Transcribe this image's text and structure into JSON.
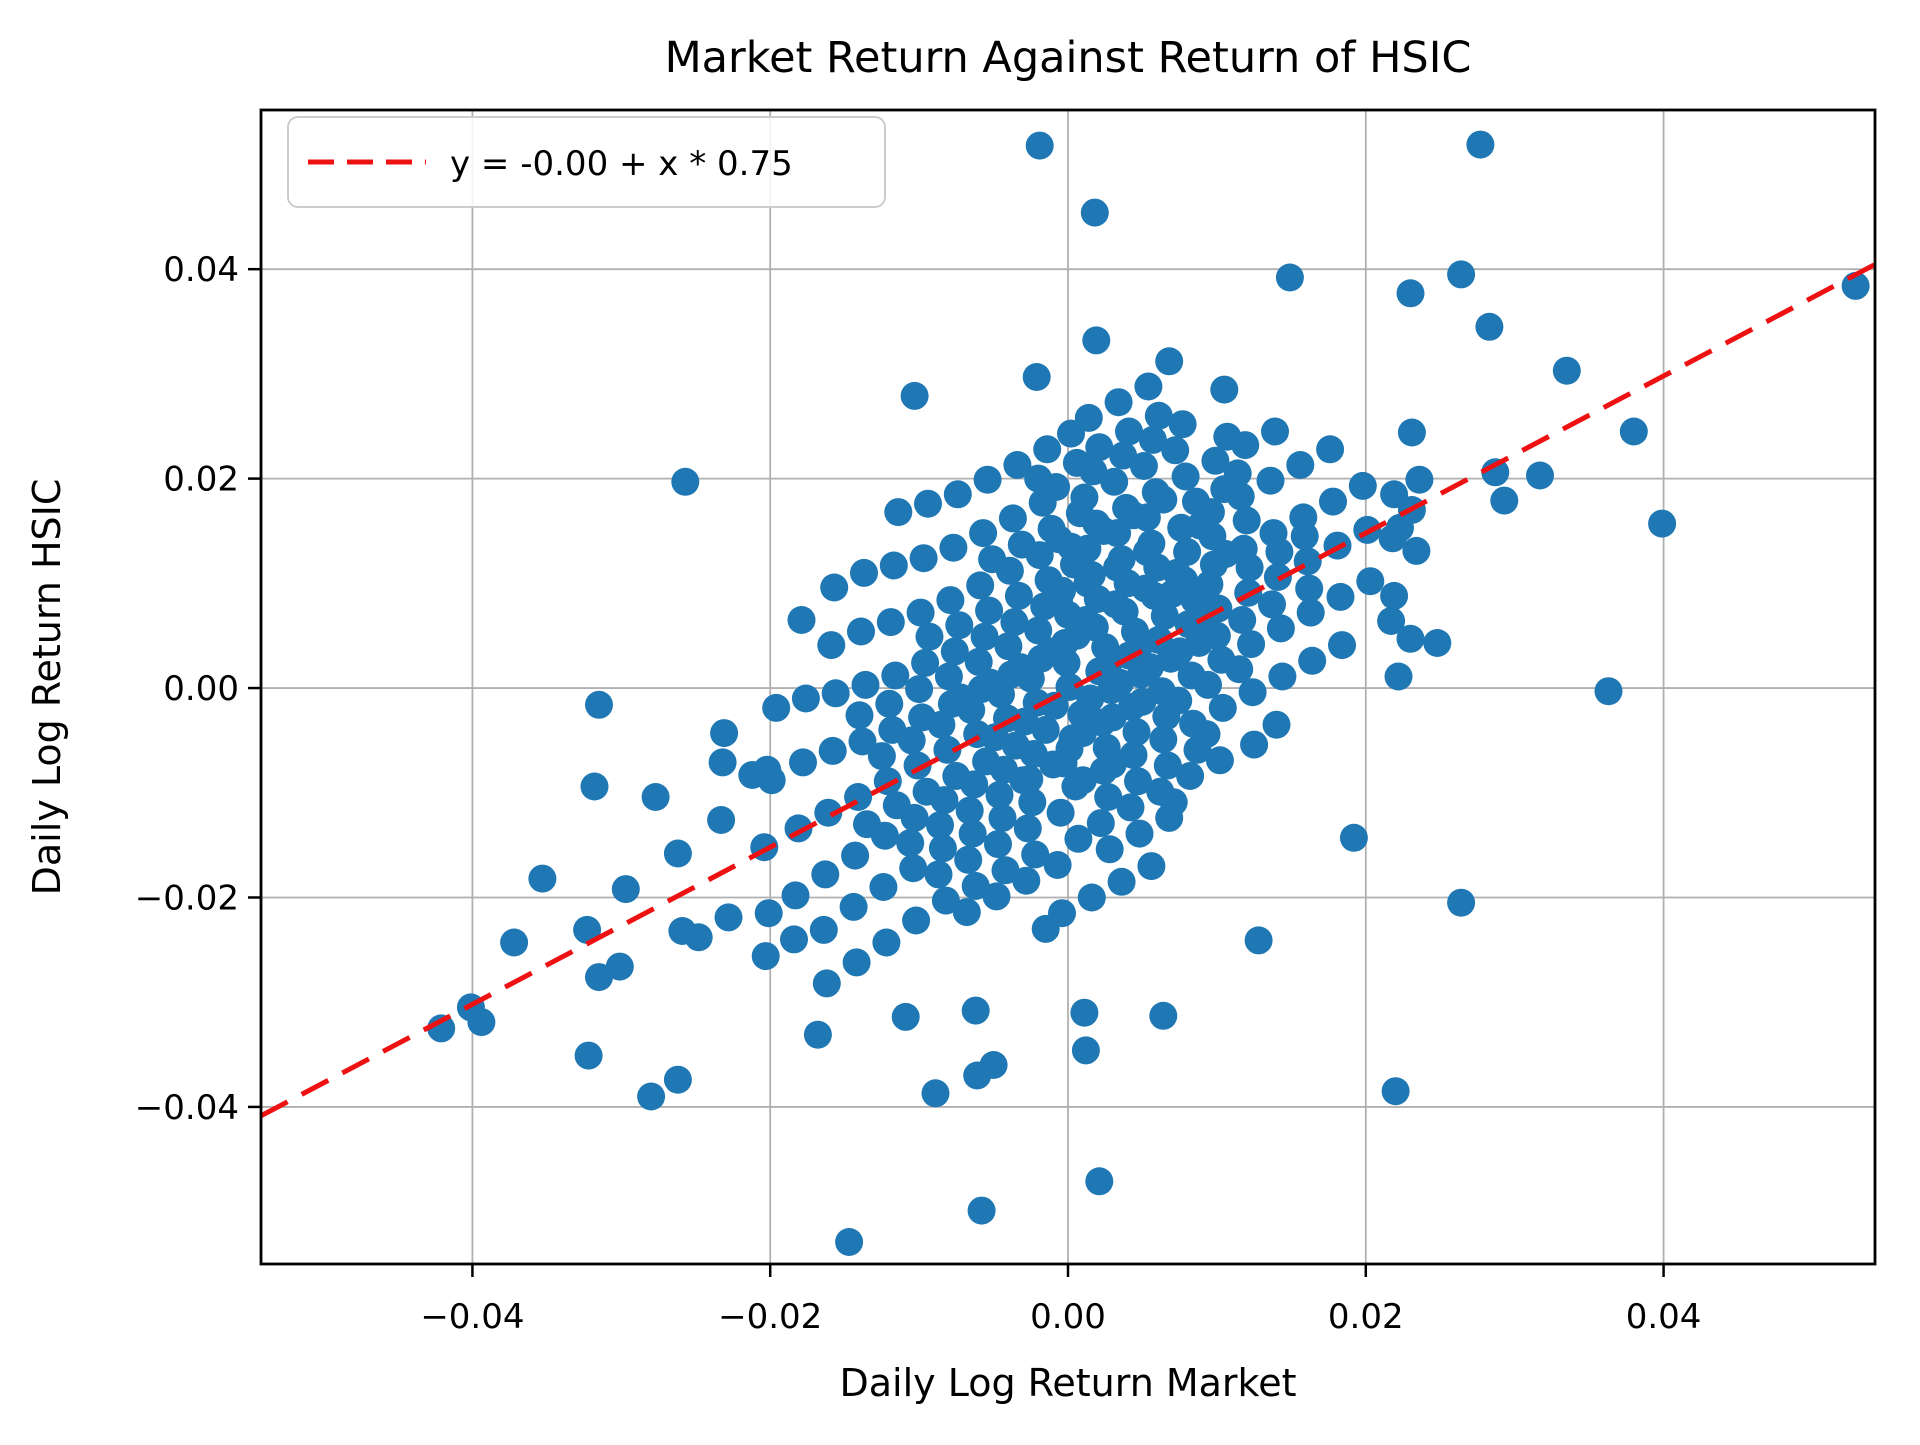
{
  "figure": {
    "title": "Market Return Against Return of HSIC",
    "xlabel": "Daily Log Return Market",
    "ylabel": "Daily Log Return HSIC",
    "legend_label": "y = -0.00 + x * 0.75"
  },
  "colors": {
    "scatter": "#1f77b4",
    "fit_line": "#ee1111",
    "grid": "#b0b0b0",
    "spine": "#000000",
    "tick": "#000000",
    "legend_border": "#cccccc",
    "legend_fill": "#ffffff"
  },
  "chart_data": {
    "type": "scatter",
    "title": "Market Return Against Return of HSIC",
    "xlabel": "Daily Log Return Market",
    "ylabel": "Daily Log Return HSIC",
    "xlim": [
      -0.0542,
      0.0542
    ],
    "ylim": [
      -0.055,
      0.0552
    ],
    "grid": true,
    "legend_position": "upper left",
    "x_tick_values": [
      -0.04,
      -0.02,
      0.0,
      0.02,
      0.04
    ],
    "x_tick_labels": [
      "−0.04",
      "−0.02",
      "0.00",
      "0.02",
      "0.04"
    ],
    "y_tick_values": [
      -0.04,
      -0.02,
      0.0,
      0.02,
      0.04
    ],
    "y_tick_labels": [
      "−0.04",
      "−0.02",
      "0.00",
      "0.02",
      "0.04"
    ],
    "fit_line": {
      "label": "y = -0.00 + x * 0.75",
      "intercept": -0.0002,
      "slope": 0.75,
      "style": "dashed"
    },
    "marker_radius_px": 14,
    "points": [
      [
        -0.0019,
        0.0518
      ],
      [
        0.0277,
        0.0519
      ],
      [
        0.0018,
        0.0454
      ],
      [
        0.0529,
        0.0384
      ],
      [
        0.0283,
        0.0345
      ],
      [
        0.0264,
        0.0395
      ],
      [
        0.023,
        0.0377
      ],
      [
        0.0335,
        0.0303
      ],
      [
        0.0149,
        0.0392
      ],
      [
        0.0105,
        0.0285
      ],
      [
        0.0068,
        0.0312
      ],
      [
        -0.0021,
        0.0297
      ],
      [
        0.0019,
        0.0332
      ],
      [
        0.0231,
        0.0244
      ],
      [
        0.038,
        0.0245
      ],
      [
        0.0399,
        0.0157
      ],
      [
        0.0363,
        -0.0003
      ],
      [
        -0.0103,
        0.0279
      ],
      [
        -0.0257,
        0.0197
      ],
      [
        -0.0147,
        -0.0529
      ],
      [
        -0.0058,
        -0.0499
      ],
      [
        0.0021,
        -0.0471
      ],
      [
        -0.0421,
        -0.0325
      ],
      [
        -0.0401,
        -0.0305
      ],
      [
        -0.0394,
        -0.0319
      ],
      [
        -0.0372,
        -0.0243
      ],
      [
        -0.0323,
        -0.0231
      ],
      [
        -0.0322,
        -0.0351
      ],
      [
        -0.0315,
        -0.0276
      ],
      [
        -0.028,
        -0.039
      ],
      [
        -0.0262,
        -0.0374
      ],
      [
        -0.0248,
        -0.0238
      ],
      [
        -0.0353,
        -0.0182
      ],
      [
        -0.0168,
        -0.0331
      ],
      [
        -0.0089,
        -0.0387
      ],
      [
        -0.0061,
        -0.037
      ],
      [
        -0.005,
        -0.036
      ],
      [
        -0.0109,
        -0.0314
      ],
      [
        -0.0062,
        -0.0308
      ],
      [
        0.0011,
        -0.031
      ],
      [
        0.0012,
        -0.0346
      ],
      [
        0.022,
        -0.0385
      ],
      [
        0.0064,
        -0.0313
      ],
      [
        0.0128,
        -0.0241
      ],
      [
        0.0264,
        -0.0205
      ],
      [
        0.0192,
        -0.0143
      ],
      [
        -0.0315,
        -0.0016
      ],
      [
        -0.0318,
        -0.0094
      ],
      [
        -0.0277,
        -0.0104
      ],
      [
        -0.0232,
        -0.0071
      ],
      [
        -0.0212,
        -0.0083
      ],
      [
        -0.0202,
        -0.0078
      ],
      [
        0.0236,
        0.0199
      ],
      [
        0.0287,
        0.0206
      ],
      [
        0.0317,
        0.0203
      ],
      [
        0.0293,
        0.0179
      ],
      [
        0.0231,
        0.017
      ],
      [
        0.0223,
        0.0153
      ],
      [
        0.0234,
        0.0131
      ],
      [
        0.0218,
        0.0143
      ],
      [
        0.0219,
        0.0185
      ],
      [
        0.0219,
        0.0088
      ],
      [
        0.0217,
        0.0064
      ],
      [
        0.023,
        0.0047
      ],
      [
        0.0248,
        0.0043
      ],
      [
        0.0222,
        0.0011
      ],
      [
        -0.0301,
        -0.0266
      ],
      [
        -0.0297,
        -0.0192
      ],
      [
        -0.0262,
        -0.0158
      ],
      [
        -0.0259,
        -0.0232
      ],
      [
        -0.0233,
        -0.0126
      ],
      [
        -0.0228,
        -0.0219
      ],
      [
        -0.0231,
        -0.0043
      ],
      [
        -0.0204,
        -0.0152
      ],
      [
        -0.0199,
        -0.0088
      ],
      [
        -0.0201,
        -0.0215
      ],
      [
        -0.0196,
        -0.0019
      ],
      [
        -0.0203,
        -0.0256
      ],
      [
        -0.0181,
        -0.0134
      ],
      [
        -0.0178,
        -0.0071
      ],
      [
        -0.0183,
        -0.0198
      ],
      [
        -0.0176,
        -0.001
      ],
      [
        -0.0184,
        -0.024
      ],
      [
        -0.0179,
        0.0065
      ],
      [
        -0.0161,
        -0.0119
      ],
      [
        -0.0158,
        -0.006
      ],
      [
        -0.0163,
        -0.0178
      ],
      [
        -0.0156,
        -0.0005
      ],
      [
        -0.0164,
        -0.0231
      ],
      [
        -0.0159,
        0.0041
      ],
      [
        -0.0162,
        -0.0282
      ],
      [
        -0.0157,
        0.0096
      ],
      [
        -0.0141,
        -0.0104
      ],
      [
        -0.0138,
        -0.0051
      ],
      [
        -0.0143,
        -0.016
      ],
      [
        -0.0136,
        0.0003
      ],
      [
        -0.0144,
        -0.0209
      ],
      [
        -0.0139,
        0.0054
      ],
      [
        -0.0142,
        -0.0262
      ],
      [
        -0.0137,
        0.011
      ],
      [
        -0.014,
        -0.0026
      ],
      [
        -0.0135,
        -0.013
      ],
      [
        -0.0121,
        -0.0089
      ],
      [
        -0.0118,
        -0.004
      ],
      [
        -0.0123,
        -0.0141
      ],
      [
        -0.0116,
        0.0012
      ],
      [
        -0.0124,
        -0.019
      ],
      [
        -0.0119,
        0.0063
      ],
      [
        -0.0122,
        -0.0243
      ],
      [
        -0.0117,
        0.0117
      ],
      [
        -0.012,
        -0.0015
      ],
      [
        -0.0115,
        -0.0112
      ],
      [
        -0.0125,
        -0.0065
      ],
      [
        -0.0114,
        0.0168
      ],
      [
        -0.0101,
        -0.0074
      ],
      [
        -0.0098,
        -0.0028
      ],
      [
        -0.0103,
        -0.0124
      ],
      [
        -0.0096,
        0.0024
      ],
      [
        -0.0104,
        -0.0172
      ],
      [
        -0.0099,
        0.0072
      ],
      [
        -0.0102,
        -0.0222
      ],
      [
        -0.0097,
        0.0124
      ],
      [
        -0.01,
        -0.0001
      ],
      [
        -0.0095,
        -0.0099
      ],
      [
        -0.0105,
        -0.005
      ],
      [
        -0.0094,
        0.0176
      ],
      [
        -0.0106,
        -0.0148
      ],
      [
        -0.0093,
        0.0049
      ],
      [
        -0.0081,
        -0.0059
      ],
      [
        -0.0078,
        -0.0015
      ],
      [
        -0.0083,
        -0.0107
      ],
      [
        -0.0076,
        0.0035
      ],
      [
        -0.0084,
        -0.0153
      ],
      [
        -0.0079,
        0.0084
      ],
      [
        -0.0082,
        -0.0203
      ],
      [
        -0.0077,
        0.0134
      ],
      [
        -0.008,
        0.0011
      ],
      [
        -0.0075,
        -0.0084
      ],
      [
        -0.0085,
        -0.0035
      ],
      [
        -0.0074,
        0.0185
      ],
      [
        -0.0086,
        -0.0131
      ],
      [
        -0.0073,
        0.006
      ],
      [
        -0.0087,
        -0.0178
      ],
      [
        -0.0072,
        -0.0009
      ],
      [
        -0.0061,
        -0.0044
      ],
      [
        -0.0058,
        -0.0001
      ],
      [
        -0.0063,
        -0.0092
      ],
      [
        -0.0056,
        0.0049
      ],
      [
        -0.0064,
        -0.0139
      ],
      [
        -0.0059,
        0.0098
      ],
      [
        -0.0062,
        -0.0189
      ],
      [
        -0.0057,
        0.0148
      ],
      [
        -0.006,
        0.0025
      ],
      [
        -0.0055,
        -0.007
      ],
      [
        -0.0065,
        -0.0021
      ],
      [
        -0.0054,
        0.0199
      ],
      [
        -0.0066,
        -0.0117
      ],
      [
        -0.0053,
        0.0074
      ],
      [
        -0.0067,
        -0.0164
      ],
      [
        -0.0052,
        0.0005
      ],
      [
        -0.0068,
        -0.0214
      ],
      [
        -0.0051,
        0.0123
      ],
      [
        -0.0041,
        -0.0029
      ],
      [
        -0.0038,
        0.0013
      ],
      [
        -0.0043,
        -0.0078
      ],
      [
        -0.0036,
        0.0063
      ],
      [
        -0.0044,
        -0.0124
      ],
      [
        -0.0039,
        0.0112
      ],
      [
        -0.0042,
        -0.0174
      ],
      [
        -0.0037,
        0.0162
      ],
      [
        -0.004,
        0.004
      ],
      [
        -0.0035,
        -0.0055
      ],
      [
        -0.0045,
        -0.0006
      ],
      [
        -0.0034,
        0.0213
      ],
      [
        -0.0046,
        -0.0102
      ],
      [
        -0.0033,
        0.0088
      ],
      [
        -0.0047,
        -0.0149
      ],
      [
        -0.0032,
        0.002
      ],
      [
        -0.0048,
        -0.0199
      ],
      [
        -0.0031,
        0.0137
      ],
      [
        -0.0049,
        -0.0047
      ],
      [
        -0.003,
        -0.0088
      ],
      [
        -0.0021,
        -0.0014
      ],
      [
        -0.0018,
        0.0028
      ],
      [
        -0.0023,
        -0.0063
      ],
      [
        -0.0016,
        0.0078
      ],
      [
        -0.0024,
        -0.0109
      ],
      [
        -0.0019,
        0.0127
      ],
      [
        -0.0022,
        -0.0159
      ],
      [
        -0.0017,
        0.0177
      ],
      [
        -0.002,
        0.0055
      ],
      [
        -0.0015,
        -0.004
      ],
      [
        -0.0025,
        0.0009
      ],
      [
        -0.0014,
        0.0228
      ],
      [
        -0.0026,
        -0.0087
      ],
      [
        -0.0013,
        0.0103
      ],
      [
        -0.0027,
        -0.0134
      ],
      [
        -0.0012,
        0.0035
      ],
      [
        -0.0028,
        -0.0184
      ],
      [
        -0.0011,
        0.0152
      ],
      [
        -0.0029,
        -0.0032
      ],
      [
        -0.001,
        -0.0073
      ],
      [
        -0.002,
        0.02
      ],
      [
        -0.0015,
        -0.023
      ],
      [
        0.0001,
        0.0001
      ],
      [
        -0.0002,
        0.0043
      ],
      [
        0.0003,
        -0.0048
      ],
      [
        -0.0004,
        0.0093
      ],
      [
        0.0005,
        -0.0094
      ],
      [
        -0.0006,
        0.0142
      ],
      [
        0.0007,
        -0.0144
      ],
      [
        -0.0008,
        0.0192
      ],
      [
        0.0,
        0.007
      ],
      [
        0.0009,
        -0.0025
      ],
      [
        -0.0001,
        0.0024
      ],
      [
        0.0002,
        0.0243
      ],
      [
        -0.0003,
        -0.0072
      ],
      [
        0.0004,
        0.0118
      ],
      [
        -0.0005,
        -0.0119
      ],
      [
        0.0006,
        0.005
      ],
      [
        -0.0007,
        -0.0169
      ],
      [
        0.0008,
        0.0167
      ],
      [
        -0.0009,
        -0.0017
      ],
      [
        0.0001,
        -0.0058
      ],
      [
        0.0006,
        0.0215
      ],
      [
        -0.0004,
        -0.0215
      ],
      [
        0.0002,
        0.0135
      ],
      [
        -0.0006,
        0.0085
      ],
      [
        0.0021,
        0.0016
      ],
      [
        0.0018,
        0.0058
      ],
      [
        0.0023,
        -0.0033
      ],
      [
        0.0016,
        0.0108
      ],
      [
        0.0024,
        -0.0079
      ],
      [
        0.0019,
        0.0157
      ],
      [
        0.0022,
        -0.0129
      ],
      [
        0.0017,
        0.0207
      ],
      [
        0.002,
        0.0085
      ],
      [
        0.0015,
        -0.001
      ],
      [
        0.0025,
        0.0039
      ],
      [
        0.0014,
        0.0258
      ],
      [
        0.0026,
        -0.0057
      ],
      [
        0.0013,
        0.0133
      ],
      [
        0.0027,
        -0.0104
      ],
      [
        0.0012,
        0.0065
      ],
      [
        0.0028,
        -0.0154
      ],
      [
        0.0011,
        0.0182
      ],
      [
        0.0029,
        -0.0002
      ],
      [
        0.001,
        -0.0043
      ],
      [
        0.0021,
        0.023
      ],
      [
        0.0016,
        -0.02
      ],
      [
        0.0024,
        0.015
      ],
      [
        0.0013,
        0.01
      ],
      [
        0.0027,
        0.0022
      ],
      [
        0.001,
        -0.0088
      ],
      [
        0.0041,
        0.0031
      ],
      [
        0.0038,
        0.0073
      ],
      [
        0.0043,
        -0.0018
      ],
      [
        0.0036,
        0.0123
      ],
      [
        0.0044,
        -0.0064
      ],
      [
        0.0039,
        0.0172
      ],
      [
        0.0042,
        -0.0114
      ],
      [
        0.0037,
        0.0222
      ],
      [
        0.004,
        0.01
      ],
      [
        0.0035,
        0.0005
      ],
      [
        0.0045,
        0.0054
      ],
      [
        0.0034,
        0.0273
      ],
      [
        0.0046,
        -0.0042
      ],
      [
        0.0033,
        0.0148
      ],
      [
        0.0047,
        -0.0089
      ],
      [
        0.0032,
        0.008
      ],
      [
        0.0048,
        -0.0139
      ],
      [
        0.0031,
        0.0197
      ],
      [
        0.0049,
        0.0013
      ],
      [
        0.003,
        -0.0028
      ],
      [
        0.0041,
        0.0245
      ],
      [
        0.0036,
        -0.0185
      ],
      [
        0.0044,
        0.0165
      ],
      [
        0.0033,
        0.0115
      ],
      [
        0.0047,
        0.0037
      ],
      [
        0.003,
        -0.0073
      ],
      [
        0.0061,
        0.0046
      ],
      [
        0.0058,
        0.0088
      ],
      [
        0.0063,
        -0.0003
      ],
      [
        0.0056,
        0.0138
      ],
      [
        0.0064,
        -0.0049
      ],
      [
        0.0059,
        0.0187
      ],
      [
        0.0062,
        -0.0099
      ],
      [
        0.0057,
        0.0237
      ],
      [
        0.006,
        0.0115
      ],
      [
        0.0055,
        0.002
      ],
      [
        0.0065,
        0.0069
      ],
      [
        0.0054,
        0.0288
      ],
      [
        0.0066,
        -0.0027
      ],
      [
        0.0053,
        0.0163
      ],
      [
        0.0067,
        -0.0074
      ],
      [
        0.0052,
        0.0095
      ],
      [
        0.0068,
        -0.0124
      ],
      [
        0.0051,
        0.0212
      ],
      [
        0.0069,
        0.0028
      ],
      [
        0.005,
        -0.0013
      ],
      [
        0.0061,
        0.026
      ],
      [
        0.0056,
        -0.017
      ],
      [
        0.0064,
        0.018
      ],
      [
        0.0053,
        0.013
      ],
      [
        0.0081,
        0.0061
      ],
      [
        0.0078,
        0.0103
      ],
      [
        0.0083,
        0.0012
      ],
      [
        0.0076,
        0.0153
      ],
      [
        0.0084,
        -0.0034
      ],
      [
        0.0079,
        0.0202
      ],
      [
        0.0082,
        -0.0084
      ],
      [
        0.0077,
        0.0252
      ],
      [
        0.008,
        0.013
      ],
      [
        0.0075,
        0.0035
      ],
      [
        0.0085,
        0.0084
      ],
      [
        0.0074,
        -0.0012
      ],
      [
        0.0086,
        0.0178
      ],
      [
        0.0073,
        0.011
      ],
      [
        0.0087,
        -0.0059
      ],
      [
        0.0072,
        0.0227
      ],
      [
        0.0088,
        0.0043
      ],
      [
        0.0071,
        -0.0109
      ],
      [
        0.0089,
        0.0155
      ],
      [
        0.007,
        0.009
      ],
      [
        0.0101,
        0.0076
      ],
      [
        0.0098,
        0.0118
      ],
      [
        0.0103,
        0.0027
      ],
      [
        0.0096,
        0.0168
      ],
      [
        0.0104,
        -0.0019
      ],
      [
        0.0099,
        0.0217
      ],
      [
        0.0102,
        -0.0069
      ],
      [
        0.0097,
        0.0145
      ],
      [
        0.01,
        0.005
      ],
      [
        0.0095,
        0.0099
      ],
      [
        0.0105,
        0.019
      ],
      [
        0.0094,
        0.0003
      ],
      [
        0.0106,
        0.0128
      ],
      [
        0.0093,
        -0.0044
      ],
      [
        0.0107,
        0.024
      ],
      [
        0.0092,
        0.0063
      ],
      [
        0.0121,
        0.0091
      ],
      [
        0.0118,
        0.0133
      ],
      [
        0.0123,
        0.0042
      ],
      [
        0.0116,
        0.0183
      ],
      [
        0.0124,
        -0.0004
      ],
      [
        0.0119,
        0.0232
      ],
      [
        0.0122,
        0.0115
      ],
      [
        0.0117,
        0.0065
      ],
      [
        0.012,
        0.016
      ],
      [
        0.0115,
        0.0018
      ],
      [
        0.0125,
        -0.0054
      ],
      [
        0.0114,
        0.0205
      ],
      [
        0.0141,
        0.0106
      ],
      [
        0.0138,
        0.0148
      ],
      [
        0.0143,
        0.0057
      ],
      [
        0.0136,
        0.0198
      ],
      [
        0.0144,
        0.0011
      ],
      [
        0.0139,
        0.0245
      ],
      [
        0.0142,
        0.013
      ],
      [
        0.0137,
        0.008
      ],
      [
        0.014,
        -0.0035
      ],
      [
        0.0161,
        0.0121
      ],
      [
        0.0158,
        0.0163
      ],
      [
        0.0163,
        0.0072
      ],
      [
        0.0156,
        0.0213
      ],
      [
        0.0164,
        0.0026
      ],
      [
        0.0159,
        0.0145
      ],
      [
        0.0162,
        0.0095
      ],
      [
        0.0181,
        0.0136
      ],
      [
        0.0178,
        0.0178
      ],
      [
        0.0183,
        0.0087
      ],
      [
        0.0176,
        0.0228
      ],
      [
        0.0184,
        0.0041
      ],
      [
        0.0201,
        0.0151
      ],
      [
        0.0198,
        0.0193
      ],
      [
        0.0203,
        0.0102
      ]
    ]
  }
}
